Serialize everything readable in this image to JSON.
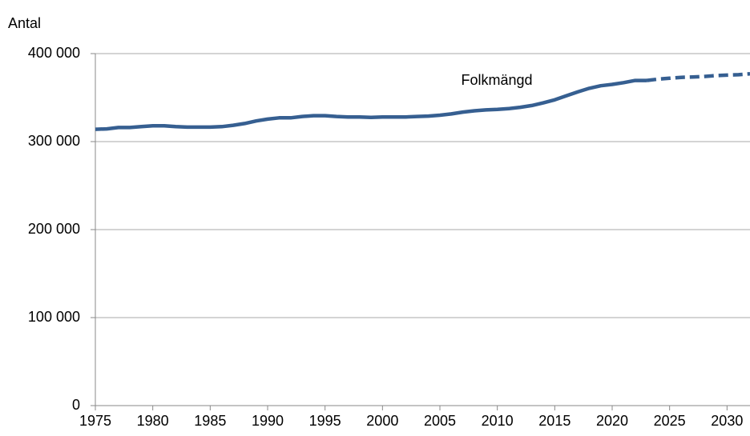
{
  "chart_data": {
    "type": "line",
    "y_label": "Antal",
    "annotation": "Folkmängd",
    "x": [
      1975,
      1976,
      1977,
      1978,
      1979,
      1980,
      1981,
      1982,
      1983,
      1984,
      1985,
      1986,
      1987,
      1988,
      1989,
      1990,
      1991,
      1992,
      1993,
      1994,
      1995,
      1996,
      1997,
      1998,
      1999,
      2000,
      2001,
      2002,
      2003,
      2004,
      2005,
      2006,
      2007,
      2008,
      2009,
      2010,
      2011,
      2012,
      2013,
      2014,
      2015,
      2016,
      2017,
      2018,
      2019,
      2020,
      2021,
      2022,
      2023,
      2024,
      2025,
      2026,
      2027,
      2028,
      2029,
      2030,
      2031,
      2032
    ],
    "series": [
      {
        "name": "Folkmängd",
        "color": "#365f91",
        "style": "solid",
        "values": [
          314000,
          314500,
          316000,
          316000,
          317000,
          318000,
          318000,
          317000,
          316500,
          316500,
          316500,
          317000,
          318500,
          320500,
          323500,
          325500,
          327000,
          327000,
          328500,
          329500,
          329500,
          328500,
          328000,
          328000,
          327500,
          328000,
          328000,
          328000,
          328500,
          329000,
          330000,
          331500,
          333500,
          335000,
          336000,
          336500,
          337500,
          339000,
          341000,
          344000,
          347500,
          352000,
          356500,
          360500,
          363500,
          365000,
          367000,
          369500,
          369500,
          null,
          null,
          null,
          null,
          null,
          null,
          null,
          null,
          null
        ]
      },
      {
        "color": "#365f91",
        "style": "dashed",
        "values": [
          null,
          null,
          null,
          null,
          null,
          null,
          null,
          null,
          null,
          null,
          null,
          null,
          null,
          null,
          null,
          null,
          null,
          null,
          null,
          null,
          null,
          null,
          null,
          null,
          null,
          null,
          null,
          null,
          null,
          null,
          null,
          null,
          null,
          null,
          null,
          null,
          null,
          null,
          null,
          null,
          null,
          null,
          null,
          null,
          null,
          null,
          null,
          null,
          369500,
          371000,
          372000,
          373000,
          373500,
          374000,
          375000,
          375500,
          376000,
          377000
        ]
      }
    ],
    "xlim": [
      1975,
      2032
    ],
    "xticks": [
      1975,
      1980,
      1985,
      1990,
      1995,
      2000,
      2005,
      2010,
      2015,
      2020,
      2025,
      2030
    ],
    "ylim": [
      0,
      400000
    ],
    "yticks": [
      0,
      {
        "value": 100000,
        "label": "100 000"
      },
      {
        "value": 200000,
        "label": "200 000"
      },
      {
        "value": 300000,
        "label": "300 000"
      },
      {
        "value": 400000,
        "label": "400 000"
      }
    ],
    "grid": true
  }
}
